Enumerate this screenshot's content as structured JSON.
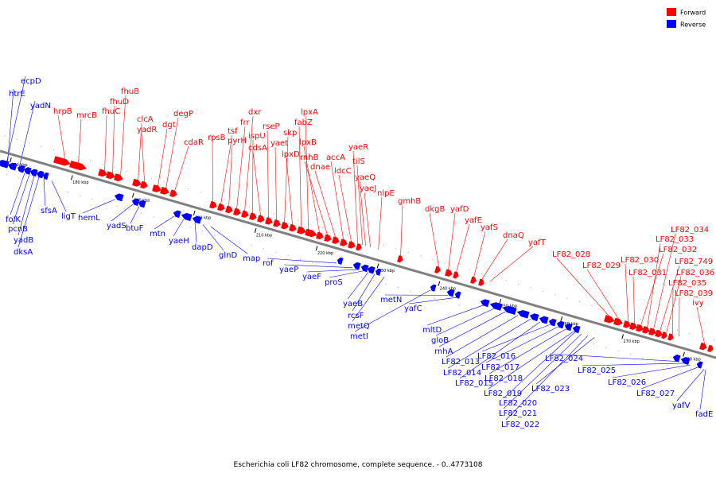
{
  "caption": "Escherichia coli LF82 chromosome, complete sequence. - 0..4773108",
  "colors": {
    "forward": "#ff0000",
    "reverse": "#0000ff",
    "backbone": "#808080"
  },
  "legend": [
    {
      "label": "Forward",
      "color": "#ff0000"
    },
    {
      "label": "Reverse",
      "color": "#0000ff"
    }
  ],
  "scale": {
    "start_kbp": 168,
    "end_kbp": 285
  },
  "ticks": [
    {
      "kbp": 170,
      "label": "170 kbp"
    },
    {
      "kbp": 180,
      "label": "180 kbp"
    },
    {
      "kbp": 190,
      "label": "190 kbp"
    },
    {
      "kbp": 200,
      "label": "200 kbp"
    },
    {
      "kbp": 210,
      "label": "210 kbp"
    },
    {
      "kbp": 220,
      "label": "220 kbp"
    },
    {
      "kbp": 230,
      "label": "230 kbp"
    },
    {
      "kbp": 240,
      "label": "240 kbp"
    },
    {
      "kbp": 250,
      "label": "250 kbp"
    },
    {
      "kbp": 260,
      "label": "260 kbp"
    },
    {
      "kbp": 270,
      "label": "270 kbp"
    },
    {
      "kbp": 280,
      "label": "280 kbp"
    }
  ],
  "forward_labels": [
    "hrpB",
    "mrcB",
    "fhuC",
    "fhuD",
    "fhuB",
    "clcA",
    "yadR",
    "dgt",
    "degP",
    "cdaR",
    "rpsB",
    "tsf",
    "pyrH",
    "frr",
    "dxr",
    "ispU",
    "cdsA",
    "rseP",
    "yaet",
    "skp",
    "lpxD",
    "fabZ",
    "lpxA",
    "lpxB",
    "rnhB",
    "dnae",
    "accA",
    "ldcC",
    "yaeR",
    "tilS",
    "yaeQ",
    "yaeJ",
    "nlpE",
    "gmhB",
    "dkgB",
    "yafD",
    "yafE",
    "yafS",
    "dnaQ",
    "yafT",
    "LF82_028",
    "LF82_029",
    "LF82_030",
    "LF82_031",
    "LF82_032",
    "LF82_033",
    "LF82_034",
    "LF82_749",
    "LF82_036",
    "LF82_035",
    "LF82_039",
    "ivy"
  ],
  "reverse_labels": [
    "ecpD",
    "htrE",
    "yadN",
    "folK",
    "pcnB",
    "yadB",
    "dksA",
    "sfsA",
    "ligT",
    "hemL",
    "yadS",
    "btuF",
    "mtn",
    "yaeH",
    "dapD",
    "glnD",
    "map",
    "rof",
    "yaeP",
    "yaeF",
    "proS",
    "yaeB",
    "rcsF",
    "metQ",
    "metI",
    "metN",
    "yafC",
    "mltD",
    "gloB",
    "rnhA",
    "LF82_013",
    "LF82_014",
    "LF82_015",
    "LF82_016",
    "LF82_017",
    "LF82_018",
    "LF82_019",
    "LF82_020",
    "LF82_021",
    "LF82_022",
    "LF82_023",
    "LF82_024",
    "LF82_025",
    "LF82_026",
    "LF82_027",
    "yafV",
    "fadE"
  ]
}
